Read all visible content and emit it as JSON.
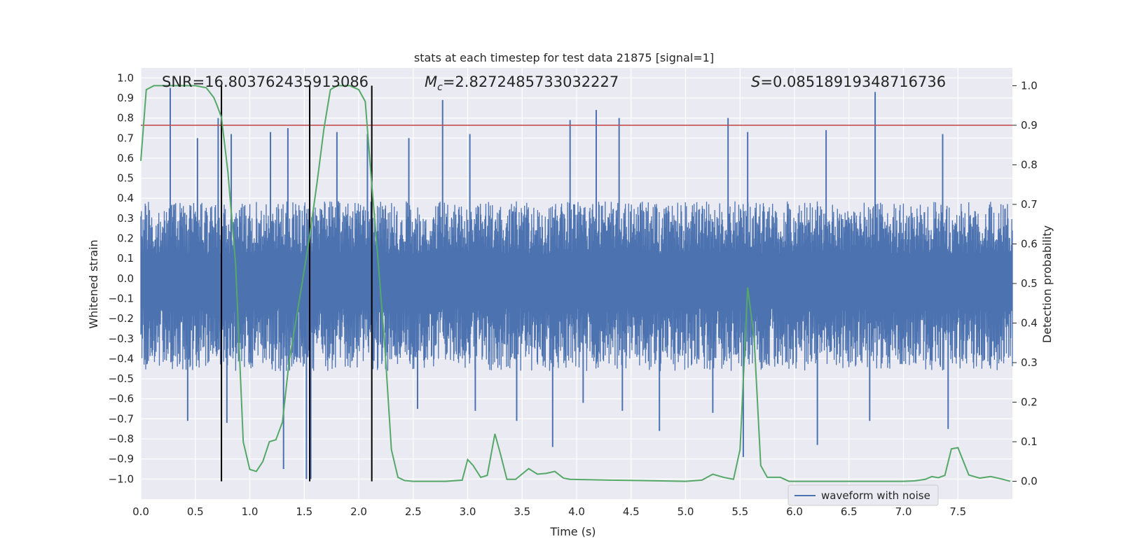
{
  "chart_data": {
    "type": "line",
    "title": "stats at each timestep for test data 21875 [signal=1]",
    "xlabel": "Time (s)",
    "ylabel": "Whitened strain",
    "y2label": "Detection probability",
    "xlim": [
      0.0,
      8.0
    ],
    "ylim": [
      -1.1,
      1.05
    ],
    "y2lim": [
      -0.045,
      1.045
    ],
    "xticks": [
      "0.0",
      "0.5",
      "1.0",
      "1.5",
      "2.0",
      "2.5",
      "3.0",
      "3.5",
      "4.0",
      "4.5",
      "5.0",
      "5.5",
      "6.0",
      "6.5",
      "7.0",
      "7.5"
    ],
    "yticks": [
      "1.0",
      "0.9",
      "0.8",
      "0.7",
      "0.6",
      "0.5",
      "0.4",
      "0.3",
      "0.2",
      "0.1",
      "0.0",
      "-0.1",
      "-0.2",
      "-0.3",
      "-0.4",
      "-0.5",
      "-0.6",
      "-0.7",
      "-0.8",
      "-0.9",
      "-1.0"
    ],
    "y2ticks": [
      "1.0",
      "0.9",
      "0.8",
      "0.7",
      "0.6",
      "0.5",
      "0.4",
      "0.3",
      "0.2",
      "0.1",
      "0.0"
    ],
    "grid": true,
    "legend_position": "bottom-right",
    "annotations": {
      "snr": "SNR=16.803762435913086",
      "mc_symbol": "M",
      "mc_sub": "c",
      "mc_value": "=2.8272485733032227",
      "s_symbol": "S",
      "s_value": "=0.08518919348716736"
    },
    "threshold_probability": 0.9,
    "vertical_markers_s": [
      0.74,
      1.55,
      2.12
    ],
    "series": [
      {
        "name": "waveform with noise",
        "color": "#4c72b0",
        "axis": "left",
        "sample_count": 1600,
        "envelope": {
          "upper_typical": 0.35,
          "lower_typical": -0.42
        },
        "spikes": [
          {
            "t": 0.27,
            "v": 0.95
          },
          {
            "t": 0.52,
            "v": 0.7
          },
          {
            "t": 0.71,
            "v": 0.8
          },
          {
            "t": 0.83,
            "v": 0.72
          },
          {
            "t": 1.19,
            "v": 0.73
          },
          {
            "t": 1.35,
            "v": 0.75
          },
          {
            "t": 1.8,
            "v": 0.73
          },
          {
            "t": 2.08,
            "v": 0.72
          },
          {
            "t": 2.46,
            "v": 0.7
          },
          {
            "t": 2.77,
            "v": 0.89
          },
          {
            "t": 3.02,
            "v": 0.72
          },
          {
            "t": 3.94,
            "v": 0.79
          },
          {
            "t": 4.18,
            "v": 0.84
          },
          {
            "t": 4.39,
            "v": 0.8
          },
          {
            "t": 5.39,
            "v": 0.8
          },
          {
            "t": 5.57,
            "v": 0.73
          },
          {
            "t": 6.29,
            "v": 0.74
          },
          {
            "t": 6.74,
            "v": 0.93
          },
          {
            "t": 7.36,
            "v": 0.72
          },
          {
            "t": 0.43,
            "v": -0.71
          },
          {
            "t": 0.79,
            "v": -0.72
          },
          {
            "t": 1.31,
            "v": -0.95
          },
          {
            "t": 1.52,
            "v": -1.0
          },
          {
            "t": 1.56,
            "v": -1.0
          },
          {
            "t": 2.54,
            "v": -0.65
          },
          {
            "t": 3.07,
            "v": -0.66
          },
          {
            "t": 3.45,
            "v": -0.71
          },
          {
            "t": 3.78,
            "v": -0.84
          },
          {
            "t": 4.06,
            "v": -0.62
          },
          {
            "t": 4.42,
            "v": -0.66
          },
          {
            "t": 4.76,
            "v": -0.76
          },
          {
            "t": 5.25,
            "v": -0.67
          },
          {
            "t": 5.53,
            "v": -0.89
          },
          {
            "t": 6.21,
            "v": -0.83
          },
          {
            "t": 6.69,
            "v": -0.71
          },
          {
            "t": 7.41,
            "v": -0.75
          }
        ]
      },
      {
        "name": "",
        "color": "#55a868",
        "axis": "right",
        "x": [
          0.0,
          0.05,
          0.12,
          0.2,
          0.3,
          0.4,
          0.5,
          0.6,
          0.67,
          0.7,
          0.74,
          0.8,
          0.87,
          0.94,
          1.0,
          1.06,
          1.12,
          1.18,
          1.24,
          1.3,
          1.36,
          1.42,
          1.48,
          1.55,
          1.62,
          1.68,
          1.74,
          1.8,
          1.86,
          1.92,
          2.0,
          2.06,
          2.12,
          2.18,
          2.24,
          2.3,
          2.36,
          2.42,
          2.5,
          2.6,
          2.8,
          2.95,
          3.0,
          3.05,
          3.12,
          3.18,
          3.25,
          3.3,
          3.36,
          3.44,
          3.56,
          3.64,
          3.72,
          3.8,
          3.88,
          3.94,
          4.1,
          4.3,
          4.6,
          5.0,
          5.15,
          5.25,
          5.35,
          5.44,
          5.5,
          5.57,
          5.63,
          5.69,
          5.75,
          5.87,
          5.95,
          6.2,
          6.6,
          7.0,
          7.1,
          7.2,
          7.26,
          7.32,
          7.38,
          7.44,
          7.5,
          7.6,
          7.7,
          7.8,
          7.9,
          7.98
        ],
        "values": [
          0.81,
          0.99,
          1.0,
          1.0,
          1.0,
          1.0,
          1.0,
          0.995,
          0.97,
          0.95,
          0.92,
          0.78,
          0.55,
          0.1,
          0.03,
          0.025,
          0.05,
          0.1,
          0.105,
          0.15,
          0.3,
          0.4,
          0.5,
          0.62,
          0.76,
          0.89,
          0.99,
          1.0,
          1.0,
          1.0,
          0.99,
          0.96,
          0.75,
          0.55,
          0.34,
          0.08,
          0.01,
          0.002,
          0.0,
          0.0,
          0.0,
          0.003,
          0.055,
          0.04,
          0.01,
          0.015,
          0.12,
          0.07,
          0.005,
          0.005,
          0.032,
          0.018,
          0.02,
          0.025,
          0.008,
          0.005,
          0.004,
          0.003,
          0.002,
          0.0,
          0.003,
          0.018,
          0.01,
          0.005,
          0.08,
          0.49,
          0.36,
          0.04,
          0.01,
          0.01,
          0.0,
          0.0,
          0.0,
          0.0,
          0.001,
          0.005,
          0.012,
          0.009,
          0.015,
          0.082,
          0.085,
          0.016,
          0.008,
          0.012,
          0.006,
          0.0
        ]
      }
    ]
  }
}
